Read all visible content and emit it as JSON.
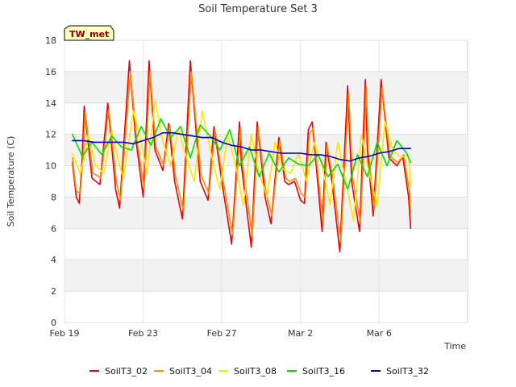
{
  "chart_data": {
    "type": "line",
    "title": "Soil Temperature Set 3",
    "xlabel": "Time",
    "ylabel": "Soil Temperature (C)",
    "badge": "TW_met",
    "ylim": [
      0,
      18
    ],
    "xlim": [
      0,
      20.5
    ],
    "y_ticks": [
      0,
      2,
      4,
      6,
      8,
      10,
      12,
      14,
      16,
      18
    ],
    "x_ticks": [
      {
        "day": 0,
        "label": "Feb 19"
      },
      {
        "day": 4,
        "label": "Feb 23"
      },
      {
        "day": 8,
        "label": "Feb 27"
      },
      {
        "day": 12,
        "label": "Mar 2"
      },
      {
        "day": 16,
        "label": "Mar 6"
      }
    ],
    "grid": true,
    "legend_position": "bottom",
    "series": [
      {
        "name": "SoilT3_02",
        "color": "#e8000b",
        "x": [
          0.4,
          0.6,
          0.75,
          0.9,
          1.0,
          1.4,
          1.6,
          1.8,
          2.2,
          2.6,
          2.8,
          3.3,
          3.6,
          4.0,
          4.3,
          4.6,
          5.0,
          5.3,
          5.6,
          6.0,
          6.4,
          6.9,
          7.3,
          7.6,
          8.0,
          8.5,
          8.9,
          9.0,
          9.5,
          9.8,
          10.2,
          10.5,
          10.9,
          11.2,
          11.4,
          11.7,
          12.0,
          12.2,
          12.4,
          12.6,
          13.1,
          13.3,
          13.6,
          14.0,
          14.4,
          14.6,
          15.0,
          15.3,
          15.4,
          15.7,
          16.1,
          16.5,
          16.9,
          17.2,
          17.5,
          17.6
        ],
        "y": [
          10.2,
          8.0,
          7.6,
          10.5,
          13.8,
          9.2,
          9.0,
          8.8,
          14.0,
          8.5,
          7.3,
          16.7,
          12.0,
          8.0,
          16.7,
          11.0,
          9.7,
          12.7,
          9.0,
          6.6,
          16.7,
          9.0,
          7.8,
          12.5,
          9.0,
          5.0,
          12.8,
          10.0,
          4.8,
          12.8,
          8.0,
          6.3,
          11.8,
          9.0,
          8.8,
          9.0,
          7.8,
          7.6,
          12.3,
          12.8,
          5.8,
          11.5,
          9.0,
          4.5,
          15.1,
          9.0,
          5.8,
          15.5,
          11.0,
          6.8,
          15.5,
          10.5,
          10.0,
          10.6,
          8.0,
          6.0
        ]
      },
      {
        "name": "SoilT3_04",
        "color": "#ff8c00",
        "x": [
          0.4,
          0.6,
          0.8,
          0.95,
          1.05,
          1.45,
          1.65,
          1.85,
          2.25,
          2.65,
          2.85,
          3.35,
          3.65,
          4.05,
          4.35,
          4.65,
          5.05,
          5.35,
          5.65,
          6.05,
          6.45,
          6.95,
          7.35,
          7.65,
          8.05,
          8.55,
          8.95,
          9.05,
          9.55,
          9.85,
          10.25,
          10.55,
          10.95,
          11.25,
          11.45,
          11.75,
          12.05,
          12.25,
          12.45,
          12.65,
          13.15,
          13.35,
          13.65,
          14.05,
          14.45,
          14.65,
          15.05,
          15.35,
          15.45,
          15.75,
          16.15,
          16.55,
          16.95,
          17.25,
          17.55,
          17.6
        ],
        "y": [
          10.5,
          8.4,
          8.2,
          10.6,
          13.4,
          9.5,
          9.4,
          9.2,
          13.6,
          8.9,
          7.8,
          16.0,
          12.0,
          8.5,
          16.0,
          11.2,
          10.0,
          12.6,
          9.3,
          7.1,
          16.0,
          9.4,
          8.2,
          12.3,
          9.2,
          5.6,
          12.4,
          10.2,
          5.5,
          12.4,
          8.3,
          6.8,
          11.6,
          9.2,
          9.0,
          9.2,
          8.2,
          8.0,
          12.0,
          12.4,
          6.3,
          11.3,
          9.2,
          5.1,
          14.6,
          9.3,
          6.3,
          15.0,
          11.0,
          7.2,
          15.0,
          10.6,
          10.2,
          10.7,
          8.3,
          7.0
        ]
      },
      {
        "name": "SoilT3_08",
        "color": "#ffe600",
        "x": [
          0.4,
          0.8,
          1.0,
          1.2,
          1.6,
          2.0,
          2.4,
          2.8,
          3.0,
          3.5,
          3.9,
          4.2,
          4.6,
          5.0,
          5.4,
          5.8,
          6.2,
          6.6,
          7.0,
          7.5,
          7.9,
          8.3,
          8.7,
          9.1,
          9.5,
          9.9,
          10.3,
          10.7,
          11.1,
          11.5,
          11.9,
          12.3,
          12.7,
          13.1,
          13.5,
          13.9,
          14.3,
          14.7,
          15.1,
          15.5,
          15.9,
          16.3,
          16.7,
          17.1,
          17.5,
          17.6
        ],
        "y": [
          10.8,
          9.5,
          10.5,
          12.0,
          10.0,
          9.5,
          12.3,
          10.0,
          9.2,
          13.5,
          11.5,
          9.5,
          14.2,
          11.5,
          10.0,
          12.3,
          10.5,
          9.0,
          13.5,
          10.5,
          8.5,
          12.0,
          10.0,
          7.5,
          12.0,
          9.5,
          8.0,
          11.5,
          9.8,
          9.5,
          10.8,
          9.0,
          11.5,
          10.0,
          7.5,
          11.5,
          9.0,
          6.5,
          12.0,
          9.5,
          7.5,
          12.8,
          11.0,
          10.5,
          10.7,
          8.6
        ]
      },
      {
        "name": "SoilT3_16",
        "color": "#00e000",
        "x": [
          0.4,
          0.9,
          1.4,
          1.9,
          2.4,
          2.9,
          3.4,
          3.9,
          4.4,
          4.9,
          5.4,
          5.9,
          6.4,
          6.9,
          7.4,
          7.9,
          8.4,
          8.9,
          9.4,
          9.9,
          10.4,
          10.9,
          11.4,
          11.9,
          12.4,
          12.9,
          13.4,
          13.9,
          14.4,
          14.9,
          15.4,
          15.9,
          16.4,
          16.9,
          17.4,
          17.6
        ],
        "y": [
          12.0,
          10.6,
          11.5,
          10.7,
          11.9,
          11.2,
          11.0,
          12.5,
          11.3,
          13.0,
          11.8,
          12.5,
          10.5,
          12.6,
          11.9,
          11.0,
          12.3,
          10.0,
          11.2,
          9.3,
          10.8,
          9.6,
          10.5,
          10.1,
          10.0,
          10.7,
          9.3,
          10.1,
          8.5,
          10.7,
          9.3,
          11.5,
          10.0,
          11.6,
          10.8,
          10.2
        ]
      },
      {
        "name": "SoilT3_32",
        "color": "#0000c8",
        "x": [
          0.4,
          1.0,
          1.5,
          2.0,
          2.5,
          3.0,
          3.5,
          4.0,
          4.5,
          5.0,
          5.5,
          6.0,
          6.5,
          7.0,
          7.5,
          8.0,
          8.5,
          9.0,
          9.5,
          10.0,
          10.5,
          11.0,
          11.5,
          12.0,
          12.5,
          13.0,
          13.5,
          14.0,
          14.5,
          15.0,
          15.5,
          16.0,
          16.5,
          17.0,
          17.5,
          17.6
        ],
        "y": [
          11.6,
          11.6,
          11.5,
          11.5,
          11.5,
          11.5,
          11.4,
          11.6,
          11.8,
          12.1,
          12.1,
          12.0,
          11.9,
          11.8,
          11.8,
          11.5,
          11.3,
          11.2,
          11.0,
          11.0,
          10.9,
          10.8,
          10.8,
          10.8,
          10.7,
          10.7,
          10.6,
          10.4,
          10.3,
          10.5,
          10.6,
          10.8,
          10.9,
          11.1,
          11.1,
          11.1
        ]
      }
    ]
  }
}
